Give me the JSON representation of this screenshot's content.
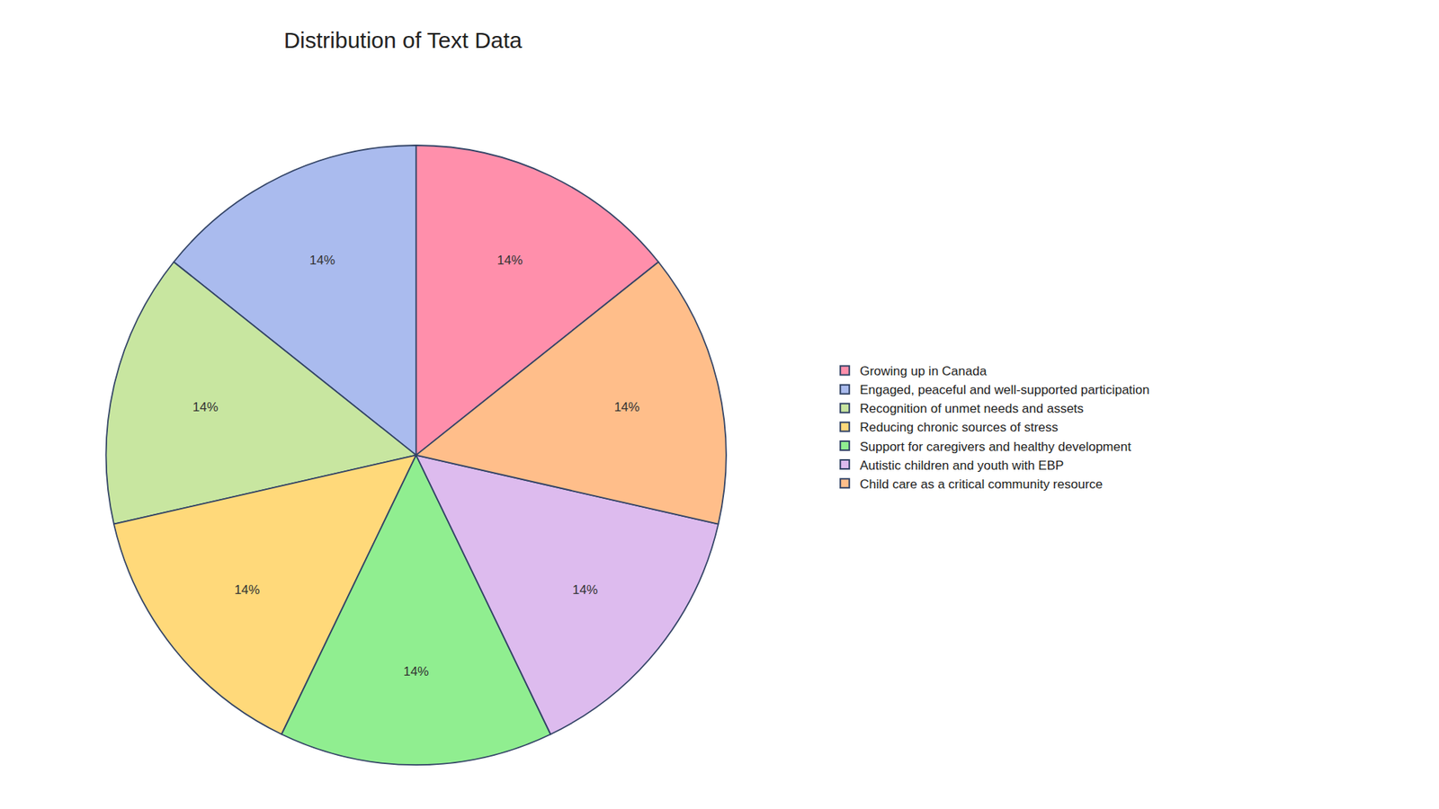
{
  "chart_data": {
    "type": "pie",
    "title": "Distribution of Text Data",
    "categories": [
      "Growing up in Canada",
      "Engaged, peaceful and well-supported participation",
      "Recognition of unmet needs and assets",
      "Reducing chronic sources of stress",
      "Support for caregivers and healthy development",
      "Autistic children and youth with EBP",
      "Child care as a critical community resource"
    ],
    "values": [
      14,
      14,
      14,
      14,
      14,
      14,
      14
    ],
    "value_labels": [
      "14%",
      "14%",
      "14%",
      "14%",
      "14%",
      "14%",
      "14%"
    ],
    "colors": [
      "#FF8FAB",
      "#AABBEE",
      "#C8E6A0",
      "#FFD97A",
      "#90EE90",
      "#DDBBEE",
      "#FFBE8A"
    ],
    "data_labels": true,
    "legend": "right"
  }
}
